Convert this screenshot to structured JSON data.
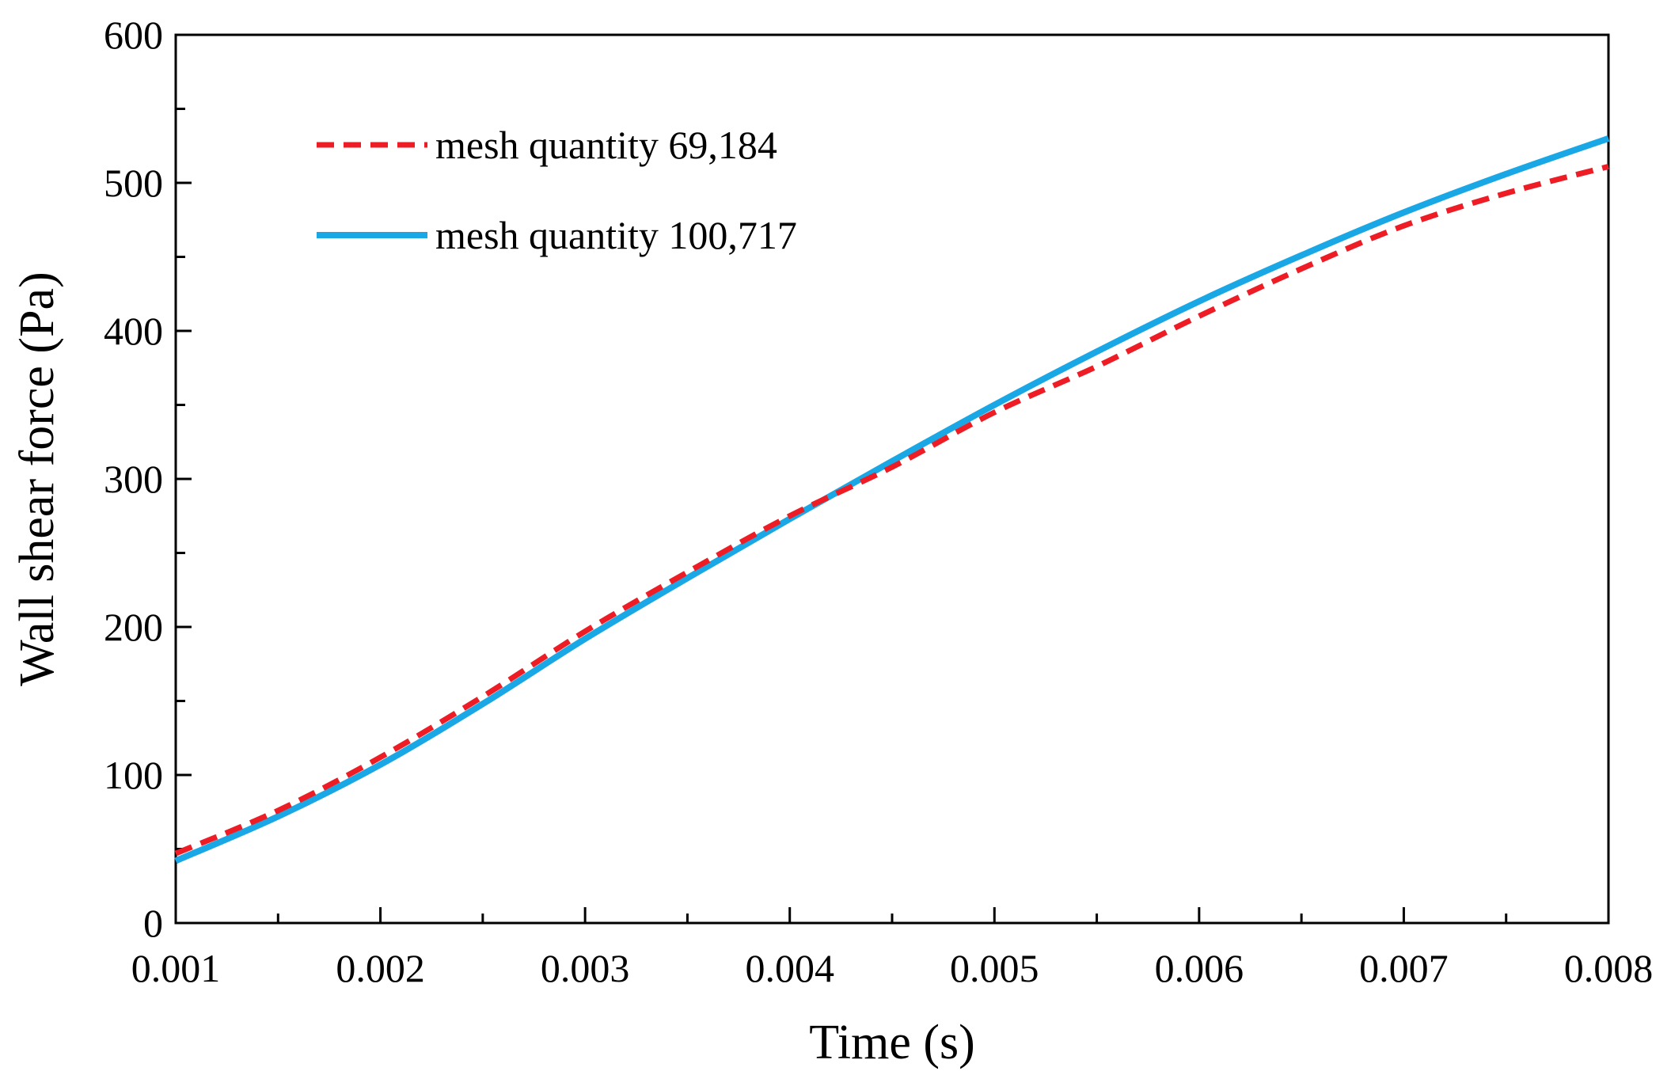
{
  "chart_data": {
    "type": "line",
    "title": "",
    "xlabel": "Time (s)",
    "ylabel": "Wall shear force (Pa)",
    "xlim": [
      0.001,
      0.008
    ],
    "ylim": [
      0,
      600
    ],
    "x_ticks": [
      "0.001",
      "0.002",
      "0.003",
      "0.004",
      "0.005",
      "0.006",
      "0.007",
      "0.008"
    ],
    "y_ticks": [
      "0",
      "100",
      "200",
      "300",
      "400",
      "500",
      "600"
    ],
    "grid": false,
    "legend_position": "top-left",
    "series": [
      {
        "name": "mesh quantity 69,184",
        "color": "#ee1c25",
        "style": "dashed",
        "x": [
          0.001,
          0.0015,
          0.002,
          0.0025,
          0.003,
          0.0035,
          0.004,
          0.0045,
          0.005,
          0.0055,
          0.006,
          0.0065,
          0.007,
          0.0075,
          0.008
        ],
        "y": [
          47,
          76,
          112,
          153,
          197,
          237,
          275,
          308,
          345,
          376,
          410,
          442,
          471,
          493,
          511
        ]
      },
      {
        "name": "mesh quantity 100,717",
        "color": "#1aa7e5",
        "style": "solid",
        "x": [
          0.001,
          0.0015,
          0.002,
          0.0025,
          0.003,
          0.0035,
          0.004,
          0.0045,
          0.005,
          0.0055,
          0.006,
          0.0065,
          0.007,
          0.0075,
          0.008
        ],
        "y": [
          42,
          72,
          107,
          148,
          192,
          233,
          273,
          312,
          350,
          386,
          420,
          451,
          480,
          506,
          530
        ]
      }
    ]
  }
}
